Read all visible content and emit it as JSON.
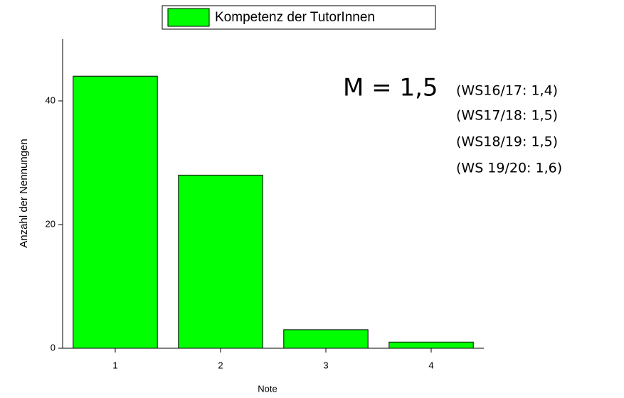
{
  "chart_data": {
    "type": "bar",
    "x": [
      1,
      2,
      3,
      4
    ],
    "series": [
      {
        "name": "Kompetenz der TutorInnen",
        "color": "#00ff00",
        "values": [
          44,
          28,
          3,
          1
        ]
      }
    ],
    "xlabel": "Note",
    "ylabel": "Anzahl der Nennungen",
    "xlim": [
      0.5,
      4.5
    ],
    "xticks": [
      1,
      2,
      3,
      4
    ],
    "ylim": [
      0,
      50
    ],
    "yticks": [
      0,
      20,
      40
    ],
    "legend": "top",
    "annotations": [
      "M = 1,5",
      "(WS16/17: 1,4)",
      "(WS17/18: 1,5)",
      "(WS18/19: 1,5)",
      "(WS 19/20: 1,6)"
    ]
  }
}
